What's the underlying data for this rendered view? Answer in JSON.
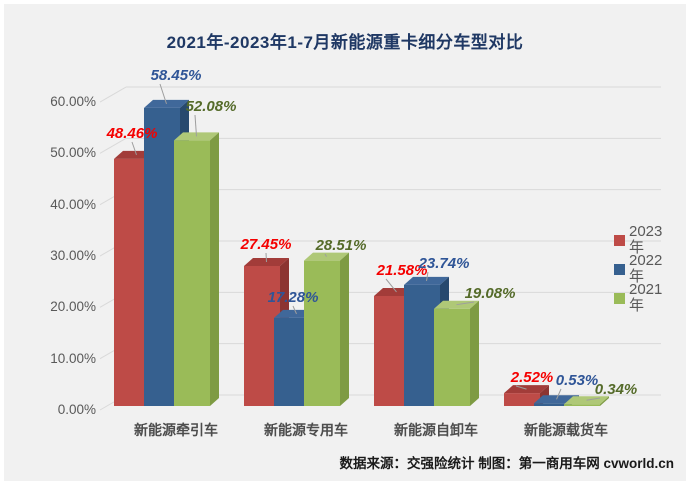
{
  "title": "2021年-2023年1-7月新能源重卡细分车型对比",
  "footer": {
    "source_text": "数据来源：交强险统计  制图：第一商用车网 cvworld.cn"
  },
  "colors": {
    "background": "#F1F1F1",
    "title_text": "#1F3864",
    "gridline": "#D9D9D9",
    "axis_text": "#595959",
    "leader_line": "#9e9e9e"
  },
  "chart_data": {
    "type": "bar",
    "is_3d": true,
    "title": "2021年-2023年1-7月新能源重卡细分车型对比",
    "categories": [
      "新能源牵引车",
      "新能源专用车",
      "新能源自卸车",
      "新能源载货车"
    ],
    "series": [
      {
        "name": "2023年",
        "color": "#BE4B47",
        "top_color": "#A23C39",
        "side_color": "#8C3431",
        "label_color": "#F50000",
        "values": [
          48.46,
          27.45,
          21.58,
          2.52
        ]
      },
      {
        "name": "2022年",
        "color": "#36608F",
        "top_color": "#40689A",
        "side_color": "#27496E",
        "label_color": "#2F5597",
        "values": [
          58.45,
          17.28,
          23.74,
          0.53
        ]
      },
      {
        "name": "2021年",
        "color": "#9ABB58",
        "top_color": "#AFC877",
        "side_color": "#7E9B43",
        "label_color": "#556B2A",
        "values": [
          52.08,
          28.51,
          19.08,
          0.34
        ]
      }
    ],
    "value_format": "0.00%",
    "yticks": [
      "0.00%",
      "10.00%",
      "20.00%",
      "30.00%",
      "40.00%",
      "50.00%",
      "60.00%"
    ],
    "ylim": [
      0,
      60
    ],
    "grid": true,
    "legend_position": "right"
  }
}
